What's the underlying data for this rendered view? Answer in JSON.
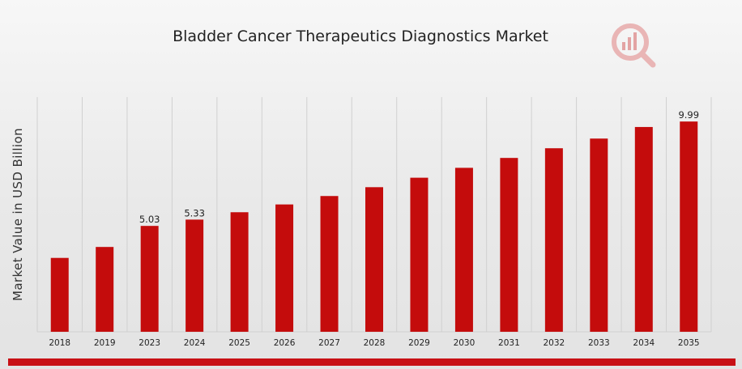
{
  "chart_data": {
    "type": "bar",
    "title": "Bladder Cancer Therapeutics Diagnostics Market",
    "ylabel": "Market Value in USD Billion",
    "xlabel": "",
    "categories": [
      "2018",
      "2019",
      "2023",
      "2024",
      "2025",
      "2026",
      "2027",
      "2028",
      "2029",
      "2030",
      "2031",
      "2032",
      "2033",
      "2034",
      "2035"
    ],
    "values": [
      3.51,
      4.03,
      5.03,
      5.33,
      5.68,
      6.05,
      6.45,
      6.87,
      7.32,
      7.79,
      8.26,
      8.72,
      9.18,
      9.73,
      9.99
    ],
    "data_labels": [
      {
        "category": "2023",
        "text": "5.03"
      },
      {
        "category": "2024",
        "text": "5.33"
      },
      {
        "category": "2035",
        "text": "9.99"
      }
    ],
    "ylim": [
      0,
      11.15
    ],
    "grid": "vertical",
    "bar_color": "#c40c0c",
    "grid_color": "#d0d0d0"
  },
  "brand": {
    "accent": "#c81015",
    "logo_icon": "bar-chart-magnifier-logo"
  }
}
